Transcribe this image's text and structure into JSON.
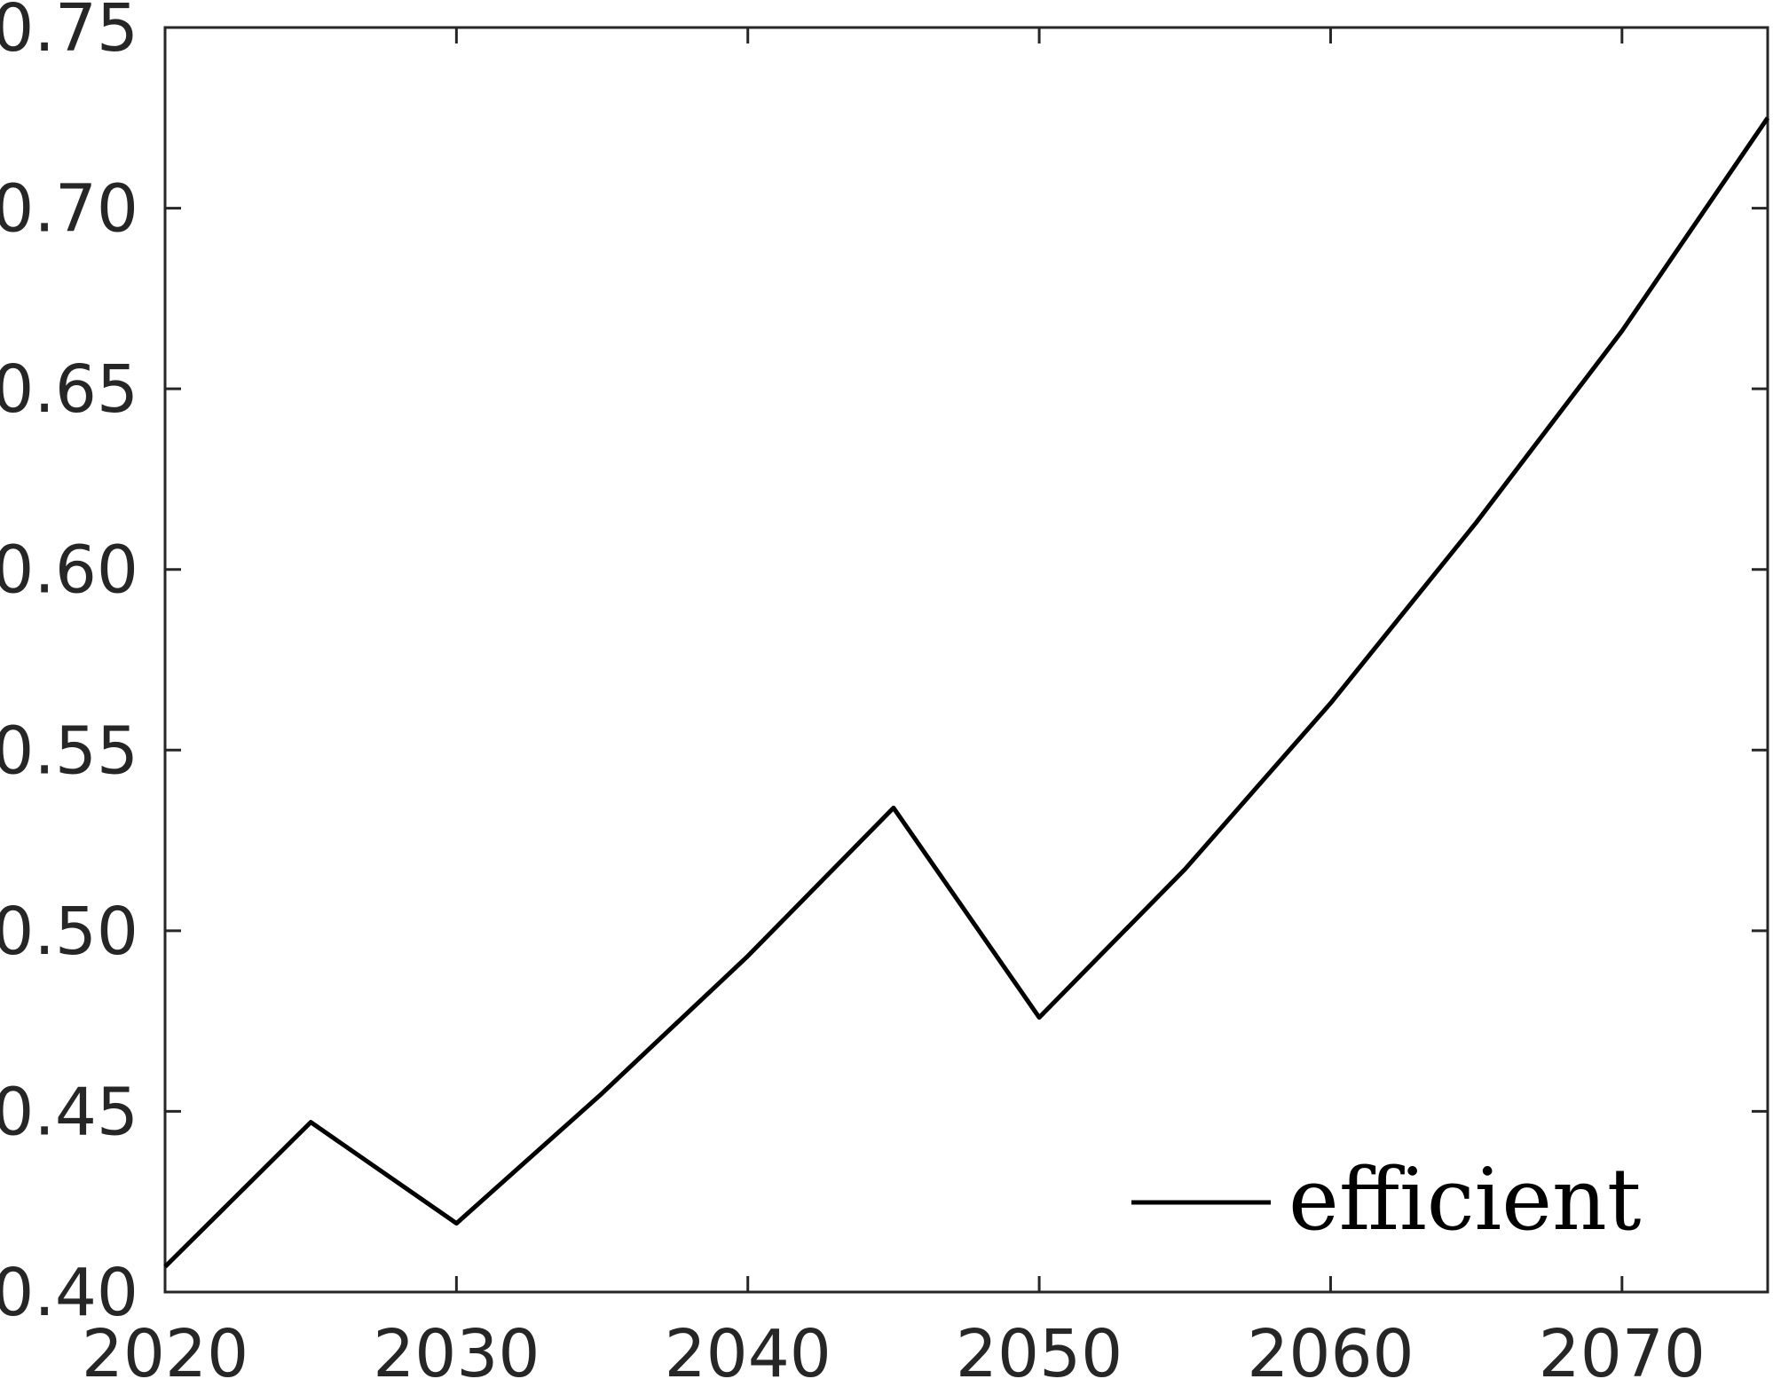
{
  "chart_data": {
    "type": "line",
    "title": "",
    "xlabel": "",
    "ylabel": "",
    "xlim": [
      2020,
      2075
    ],
    "ylim": [
      0.4,
      0.75
    ],
    "x_ticks": [
      "2020",
      "2030",
      "2040",
      "2050",
      "2060",
      "2070"
    ],
    "y_ticks": [
      "0.40",
      "0.45",
      "0.50",
      "0.55",
      "0.60",
      "0.65",
      "0.70",
      "0.75"
    ],
    "grid": false,
    "legend_position": "bottom-right",
    "series": [
      {
        "name": "efficient",
        "color": "#000000",
        "x": [
          2020,
          2025,
          2030,
          2035,
          2040,
          2045,
          2050,
          2055,
          2060,
          2065,
          2070,
          2075
        ],
        "y": [
          0.407,
          0.447,
          0.419,
          0.455,
          0.493,
          0.534,
          0.476,
          0.517,
          0.563,
          0.613,
          0.666,
          0.725
        ]
      }
    ]
  }
}
